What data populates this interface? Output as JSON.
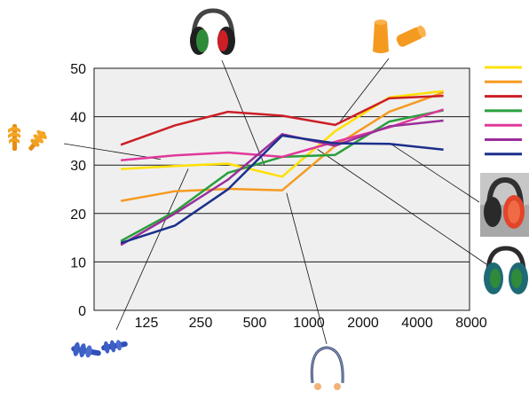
{
  "chart_data": {
    "type": "line",
    "title": "",
    "xlabel": "",
    "ylabel": "",
    "x_ticks": [
      "125",
      "250",
      "500",
      "1000",
      "2000",
      "4000",
      "8000"
    ],
    "y_ticks": [
      "0",
      "10",
      "20",
      "30",
      "40",
      "50"
    ],
    "ylim": [
      0,
      50
    ],
    "x_scale": "log2",
    "grid": "horizontal",
    "legend": "right (color swatches only, no text)",
    "x": [
      90,
      180,
      355,
      710,
      1400,
      2800,
      5600
    ],
    "series": [
      {
        "color": "#ffe000",
        "product": "orange foam earplugs",
        "values": [
          29.2,
          29.8,
          30.3,
          27.6,
          37.0,
          44.0,
          45.3
        ]
      },
      {
        "color": "#f59a20",
        "product": "banded earplugs (headband)",
        "values": [
          22.6,
          24.6,
          25.1,
          24.8,
          34.0,
          41.0,
          45.0
        ]
      },
      {
        "color": "#cc1f26",
        "product": "earmuffs (green/black)",
        "values": [
          34.2,
          38.2,
          41.0,
          40.2,
          38.3,
          43.8,
          44.3
        ]
      },
      {
        "color": "#2a9f3c",
        "product": "earmuffs (dark green/blue)",
        "values": [
          14.3,
          20.4,
          28.4,
          31.7,
          32.1,
          39.0,
          41.3
        ]
      },
      {
        "color": "#e0389a",
        "product": "flanged earplugs (orange)",
        "values": [
          31.0,
          32.0,
          32.6,
          31.7,
          34.8,
          37.8,
          41.5
        ]
      },
      {
        "color": "#9b2e9a",
        "product": "flanged earplugs (blue)",
        "values": [
          13.5,
          20.0,
          27.0,
          36.4,
          34.0,
          38.0,
          39.2
        ]
      },
      {
        "color": "#1c2f8c",
        "product": "earmuffs (red/grey)",
        "values": [
          13.9,
          17.5,
          25.0,
          36.1,
          34.5,
          34.4,
          33.2
        ]
      }
    ]
  },
  "icons": [
    {
      "name": "flanged-earplugs-orange-icon",
      "color": "#f0a020"
    },
    {
      "name": "earmuffs-green-black-icon",
      "color": "#2f8a3a"
    },
    {
      "name": "foam-earplugs-icon",
      "color": "#f59a20"
    },
    {
      "name": "earmuffs-red-grey-icon",
      "color": "#e2452b"
    },
    {
      "name": "earmuffs-dark-green-blue-icon",
      "color": "#1e6a74"
    },
    {
      "name": "banded-earplugs-icon",
      "color": "#3c4c7c"
    },
    {
      "name": "flanged-earplugs-blue-icon",
      "color": "#3c5fc7"
    }
  ]
}
